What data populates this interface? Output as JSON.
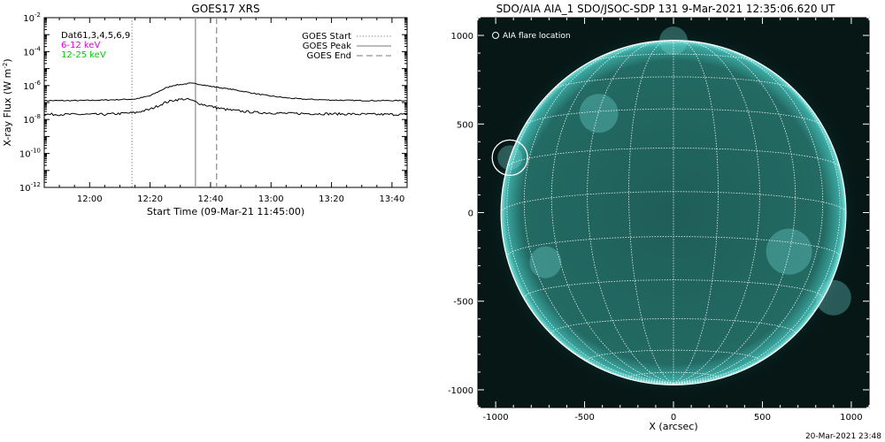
{
  "goes_panel": {
    "title": "GOES17 XRS",
    "ylabel_main": "X-ray Flux (W m",
    "ylabel_sup": "-2",
    "ylabel_close": ")",
    "xlabel": "Start Time (09-Mar-21 11:45:00)",
    "info_lines": [
      {
        "text": "Dat61,3,4,5,6,9",
        "color": "#000000"
      },
      {
        "text": "6-12 keV",
        "color": "#e000e0"
      },
      {
        "text": "12-25 keV",
        "color": "#00d000"
      }
    ],
    "legend": [
      {
        "label": "GOES Start",
        "style": "dotted"
      },
      {
        "label": "GOES Peak",
        "style": "solid"
      },
      {
        "label": "GOES End",
        "style": "dashed"
      }
    ],
    "y_tick_exponents": [
      "-2",
      "-4",
      "-6",
      "-8",
      "-10",
      "-12"
    ],
    "x_tick_labels": [
      "12:00",
      "12:20",
      "12:40",
      "13:00",
      "13:20",
      "13:40"
    ]
  },
  "aia_panel": {
    "title": "SDO/AIA AIA_1 SDO/JSOC-SDP 131  9-Mar-2021 12:35:06.620 UT",
    "legend_label": "AIA flare location",
    "xlabel": "X (arcsec)",
    "footer": "20-Mar-2021 23:48",
    "disk_color": "#1a5a55",
    "grid_color": "#ffffff",
    "y_tick_labels": [
      "1000",
      "500",
      "0",
      "-500",
      "-1000"
    ],
    "x_tick_labels": [
      "-1000",
      "-500",
      "0",
      "500",
      "1000"
    ]
  },
  "chart_data": [
    {
      "type": "line",
      "title": "GOES17 XRS",
      "xlabel": "Start Time (09-Mar-21 11:45:00)",
      "ylabel": "X-ray Flux (W m-2)",
      "y_scale": "log",
      "ylim": [
        1e-12,
        0.01
      ],
      "x_units": "minutes after 11:45:00",
      "xlim": [
        0,
        120
      ],
      "x_ticks": [
        "12:00",
        "12:20",
        "12:40",
        "13:00",
        "13:20",
        "13:40"
      ],
      "series": [
        {
          "name": "6-12 keV",
          "color": "#000000",
          "x": [
            0,
            10,
            20,
            30,
            35,
            40,
            43,
            46,
            48,
            50,
            52,
            55,
            58,
            62,
            66,
            70,
            75,
            80,
            85,
            90,
            95,
            100,
            105,
            110,
            115,
            120
          ],
          "y": [
            1.3e-07,
            1.3e-07,
            1.4e-07,
            1.6e-07,
            2.5e-07,
            7e-07,
            1.05e-06,
            1.2e-06,
            1.35e-06,
            1.3e-06,
            1.15e-06,
            9e-07,
            7.5e-07,
            6e-07,
            4.5e-07,
            3.3e-07,
            2.4e-07,
            1.9e-07,
            1.6e-07,
            1.5e-07,
            1.4e-07,
            1.35e-07,
            1.3e-07,
            1.3e-07,
            1.3e-07,
            1.3e-07
          ]
        },
        {
          "name": "12-25 keV",
          "color": "#000000",
          "x": [
            0,
            10,
            20,
            30,
            35,
            40,
            43,
            46,
            48,
            50,
            52,
            55,
            58,
            62,
            66,
            70,
            80,
            90,
            100,
            110,
            120
          ],
          "y": [
            2e-08,
            2e-08,
            2e-08,
            2.5e-08,
            4e-08,
            1e-07,
            1.4e-07,
            1.6e-07,
            1.5e-07,
            1.1e-07,
            8e-08,
            6e-08,
            4.5e-08,
            3.5e-08,
            3e-08,
            2.6e-08,
            2.3e-08,
            2.2e-08,
            2.1e-08,
            2e-08,
            2e-08
          ]
        }
      ],
      "vlines": [
        {
          "name": "GOES Start",
          "x": 29,
          "style": "dotted"
        },
        {
          "name": "GOES Peak",
          "x": 50,
          "style": "solid"
        },
        {
          "name": "GOES End",
          "x": 57,
          "style": "dashed"
        }
      ]
    },
    {
      "type": "scatter",
      "title": "SDO/AIA AIA_1 SDO/JSOC-SDP 131  9-Mar-2021 12:35:06.620 UT",
      "xlabel": "X (arcsec)",
      "ylabel": "",
      "xlim": [
        -1100,
        1100
      ],
      "ylim": [
        -1100,
        1100
      ],
      "x_ticks": [
        -1000,
        -500,
        0,
        500,
        1000
      ],
      "y_ticks": [
        1000,
        500,
        0,
        -500,
        -1000
      ],
      "solar_radius_arcsec": 970,
      "grid": true,
      "series": [
        {
          "name": "AIA flare location",
          "x": [
            -920
          ],
          "y": [
            310
          ]
        }
      ]
    }
  ]
}
